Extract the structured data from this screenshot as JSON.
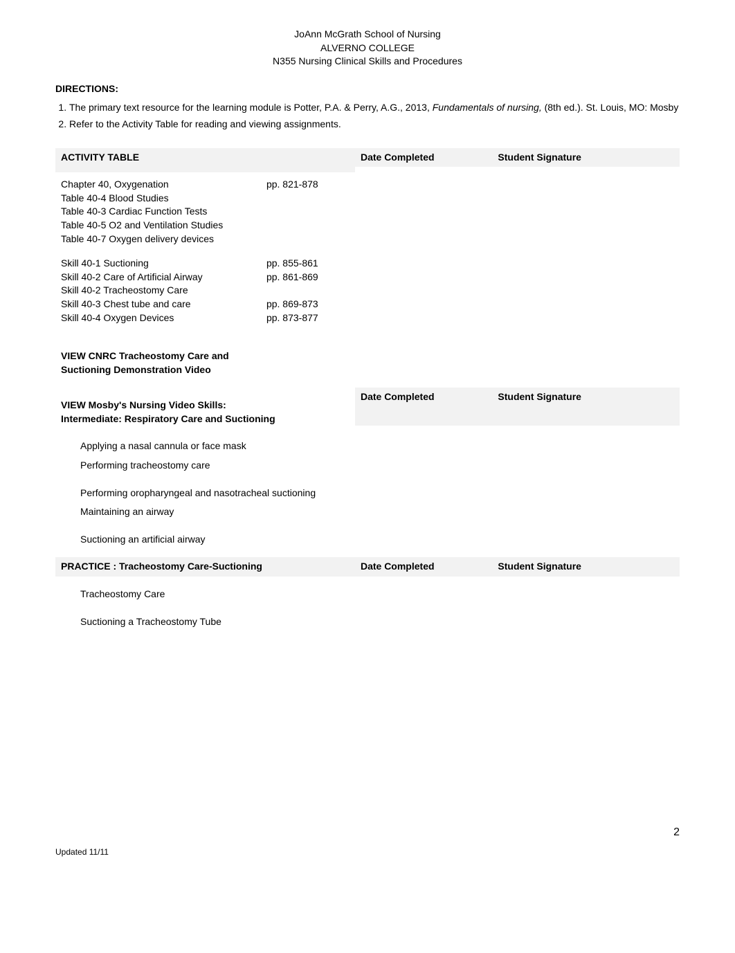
{
  "header": {
    "line1": "JoAnn McGrath School of Nursing",
    "line2": "ALVERNO COLLEGE",
    "line3": "N355 Nursing Clinical Skills and Procedures"
  },
  "directions": {
    "title": "DIRECTIONS:",
    "items": [
      {
        "prefix": "The primary text resource for the learning module is Potter, P.A. & Perry, A.G., 2013, ",
        "italic": "Fundamentals of nursing,",
        "suffix": " (8th ed.). St. Louis, MO:  Mosby"
      },
      {
        "prefix": "Refer to the Activity Table for reading and viewing assignments.",
        "italic": "",
        "suffix": ""
      }
    ]
  },
  "activity_table": {
    "title": "ACTIVITY TABLE",
    "col_date": "Date Completed",
    "col_sig": "Student Signature",
    "chapter_block": {
      "title_row": {
        "label": "Chapter 40, Oxygenation",
        "pages": "pp. 821-878"
      },
      "rows": [
        "Table 40-4  Blood Studies",
        "Table 40-3  Cardiac Function Tests",
        "Table 40-5  O2 and Ventilation Studies",
        "Table 40-7  Oxygen delivery devices"
      ]
    },
    "skills_block": {
      "rows": [
        {
          "label": "Skill 40-1  Suctioning",
          "pages": "pp. 855-861"
        },
        {
          "label": "Skill 40-2  Care of Artificial Airway",
          "pages": "pp. 861-869"
        },
        {
          "label": "Skill 40-2  Tracheostomy Care",
          "pages": ""
        },
        {
          "label": "Skill 40-3  Chest tube and care",
          "pages": "pp. 869-873"
        },
        {
          "label": "Skill 40-4  Oxygen Devices",
          "pages": "pp. 873-877"
        }
      ]
    },
    "view_cnrc": {
      "line1": "VIEW CNRC Tracheostomy Care and",
      "line2": "Suctioning Demonstration Video"
    },
    "view_mosby": {
      "line1": "VIEW Mosby's Nursing Video Skills:",
      "line2": "Intermediate: Respiratory Care and Suctioning",
      "items": [
        "Applying a nasal cannula or face mask",
        "Performing tracheostomy care",
        "",
        "Performing oropharyngeal and nasotracheal suctioning",
        "Maintaining an airway",
        "",
        "Suctioning an artificial airway"
      ]
    },
    "practice": {
      "title": "PRACTICE : Tracheostomy Care-Suctioning",
      "items": [
        "Tracheostomy Care",
        "",
        "Suctioning  a Tracheostomy Tube"
      ]
    }
  },
  "page_number": "2",
  "footer": "Updated 11/11",
  "colors": {
    "gray_bg": "#f2f2f2",
    "text": "#000000",
    "white": "#ffffff"
  }
}
